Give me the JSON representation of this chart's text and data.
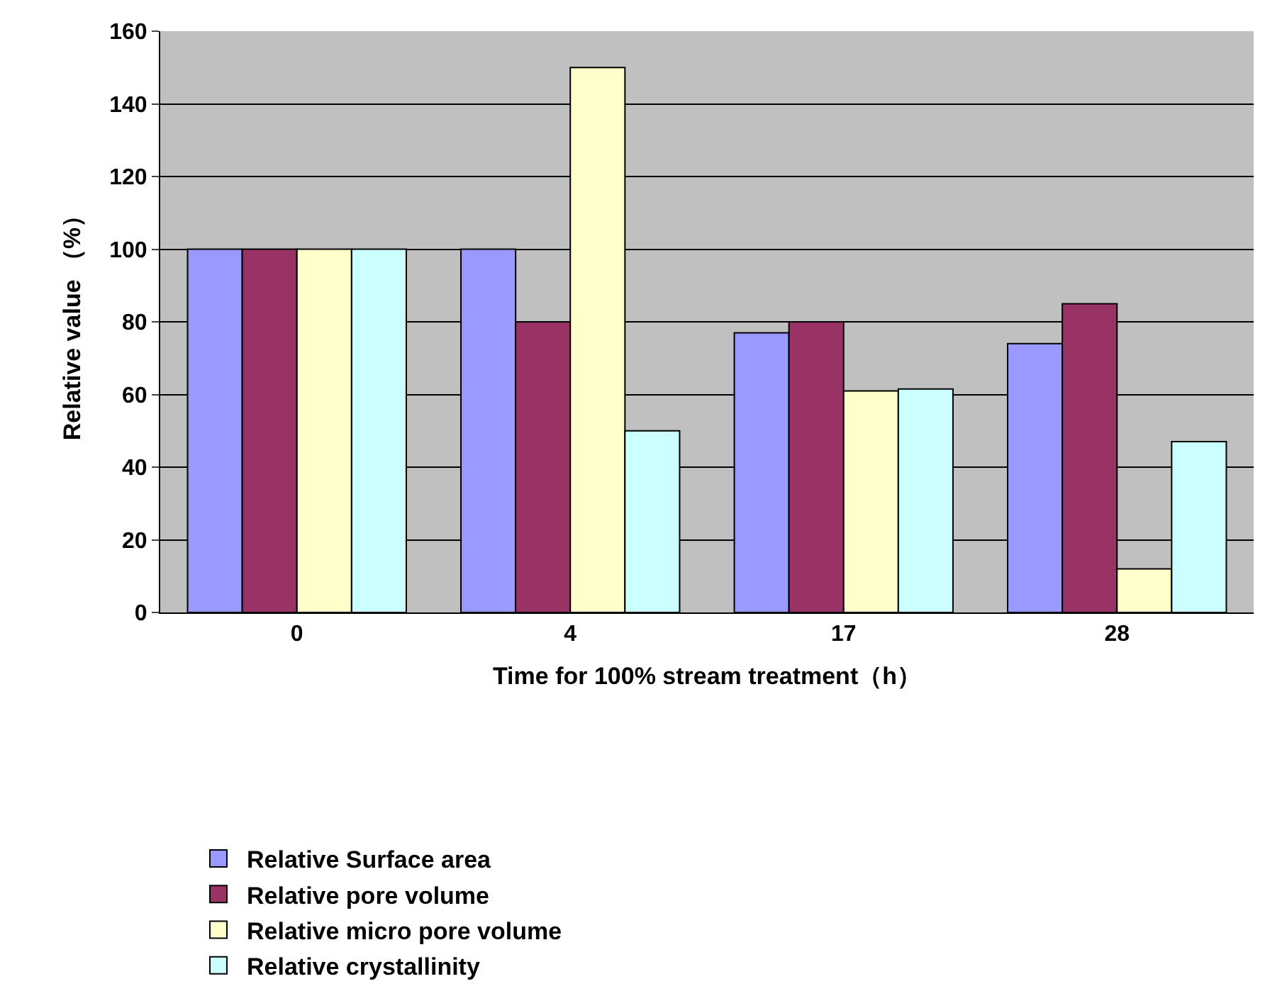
{
  "chart_data": {
    "type": "bar",
    "xlabel": "Time for 100% stream treatment（h）",
    "ylabel": "Relative value （%）",
    "categories": [
      "0",
      "4",
      "17",
      "28"
    ],
    "series": [
      {
        "name": "Relative Surface area",
        "color": "#9999ff",
        "values": [
          100,
          100,
          77,
          74
        ]
      },
      {
        "name": "Relative pore volume",
        "color": "#993366",
        "values": [
          100,
          80,
          80,
          85
        ]
      },
      {
        "name": "Relative micro pore volume",
        "color": "#ffffcc",
        "values": [
          100,
          150,
          61,
          12
        ]
      },
      {
        "name": "Relative crystallinity",
        "color": "#ccffff",
        "values": [
          100,
          50,
          61.5,
          47
        ]
      }
    ],
    "ylim": [
      0,
      160
    ],
    "yticks": [
      0,
      20,
      40,
      60,
      80,
      100,
      120,
      140,
      160
    ],
    "grid": "y",
    "legend": "bottom"
  }
}
